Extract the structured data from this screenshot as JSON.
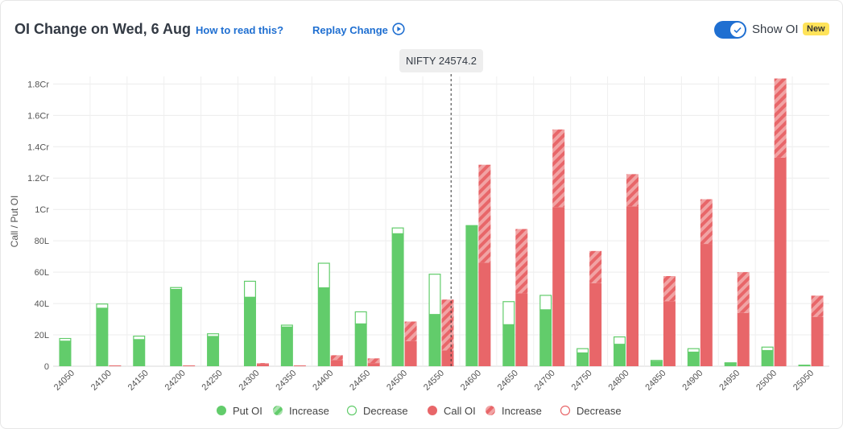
{
  "header": {
    "title": "OI Change on Wed, 6 Aug",
    "how_to_read": "How to read this?",
    "replay": "Replay Change",
    "toggle_label": "Show OI",
    "new_badge": "New"
  },
  "tooltip": {
    "text": "NIFTY 24574.2",
    "spot": 24574.2
  },
  "colors": {
    "put": "#62cc6b",
    "put_light": "#a9e2ad",
    "call": "#e86669",
    "call_light": "#f1a3a4",
    "accent": "#1f6fd1"
  },
  "chart_data": {
    "type": "bar",
    "ylabel": "Call / Put OI",
    "yticks": [
      "0",
      "20L",
      "40L",
      "60L",
      "80L",
      "1Cr",
      "1.2Cr",
      "1.4Cr",
      "1.6Cr",
      "1.8Cr"
    ],
    "ylim": [
      0,
      186
    ],
    "units": "lakh",
    "categories": [
      "24050",
      "24100",
      "24150",
      "24200",
      "24250",
      "24300",
      "24350",
      "24400",
      "24450",
      "24500",
      "24550",
      "24600",
      "24650",
      "24700",
      "24750",
      "24800",
      "24850",
      "24900",
      "24950",
      "25000",
      "25050"
    ],
    "put": [
      {
        "oi": 16,
        "prev": 18
      },
      {
        "oi": 37,
        "prev": 40
      },
      {
        "oi": 17,
        "prev": 19.5
      },
      {
        "oi": 49,
        "prev": 50.5
      },
      {
        "oi": 19,
        "prev": 21
      },
      {
        "oi": 44,
        "prev": 54.5
      },
      {
        "oi": 25,
        "prev": 26.5
      },
      {
        "oi": 50,
        "prev": 66
      },
      {
        "oi": 27,
        "prev": 35
      },
      {
        "oi": 84.5,
        "prev": 88.5
      },
      {
        "oi": 33,
        "prev": 59
      },
      {
        "oi": 89.5,
        "prev": 90
      },
      {
        "oi": 26.5,
        "prev": 41.5
      },
      {
        "oi": 36,
        "prev": 45.5
      },
      {
        "oi": 8.5,
        "prev": 11.5
      },
      {
        "oi": 14,
        "prev": 19
      },
      {
        "oi": 3,
        "prev": 4
      },
      {
        "oi": 9,
        "prev": 11.5
      },
      {
        "oi": 2,
        "prev": 2.5
      },
      {
        "oi": 10,
        "prev": 12.5
      },
      {
        "oi": 1,
        "prev": 1
      }
    ],
    "call": [
      {
        "oi": 0,
        "prev": 0
      },
      {
        "oi": 0.5,
        "prev": 0.5
      },
      {
        "oi": 0,
        "prev": 0
      },
      {
        "oi": 0.5,
        "prev": 0.5
      },
      {
        "oi": 0,
        "prev": 0
      },
      {
        "oi": 2,
        "prev": 1.5
      },
      {
        "oi": 0.5,
        "prev": 0.5
      },
      {
        "oi": 7,
        "prev": 4
      },
      {
        "oi": 5,
        "prev": 2
      },
      {
        "oi": 28.5,
        "prev": 16
      },
      {
        "oi": 42.5,
        "prev": 10
      },
      {
        "oi": 128.5,
        "prev": 66
      },
      {
        "oi": 87.5,
        "prev": 46.5
      },
      {
        "oi": 151,
        "prev": 101.5
      },
      {
        "oi": 73.5,
        "prev": 53
      },
      {
        "oi": 122.5,
        "prev": 102
      },
      {
        "oi": 57.5,
        "prev": 41.5
      },
      {
        "oi": 106.5,
        "prev": 78
      },
      {
        "oi": 60,
        "prev": 34
      },
      {
        "oi": 183.5,
        "prev": 133
      },
      {
        "oi": 45,
        "prev": 31.5
      }
    ],
    "legend": [
      {
        "label": "Put OI",
        "kind": "solid",
        "side": "put"
      },
      {
        "label": "Increase",
        "kind": "hatch",
        "side": "put"
      },
      {
        "label": "Decrease",
        "kind": "hollow",
        "side": "put"
      },
      {
        "label": "Call OI",
        "kind": "solid",
        "side": "call"
      },
      {
        "label": "Increase",
        "kind": "hatch",
        "side": "call"
      },
      {
        "label": "Decrease",
        "kind": "hollow",
        "side": "call"
      }
    ],
    "legend_position": "bottom",
    "grid": true
  }
}
